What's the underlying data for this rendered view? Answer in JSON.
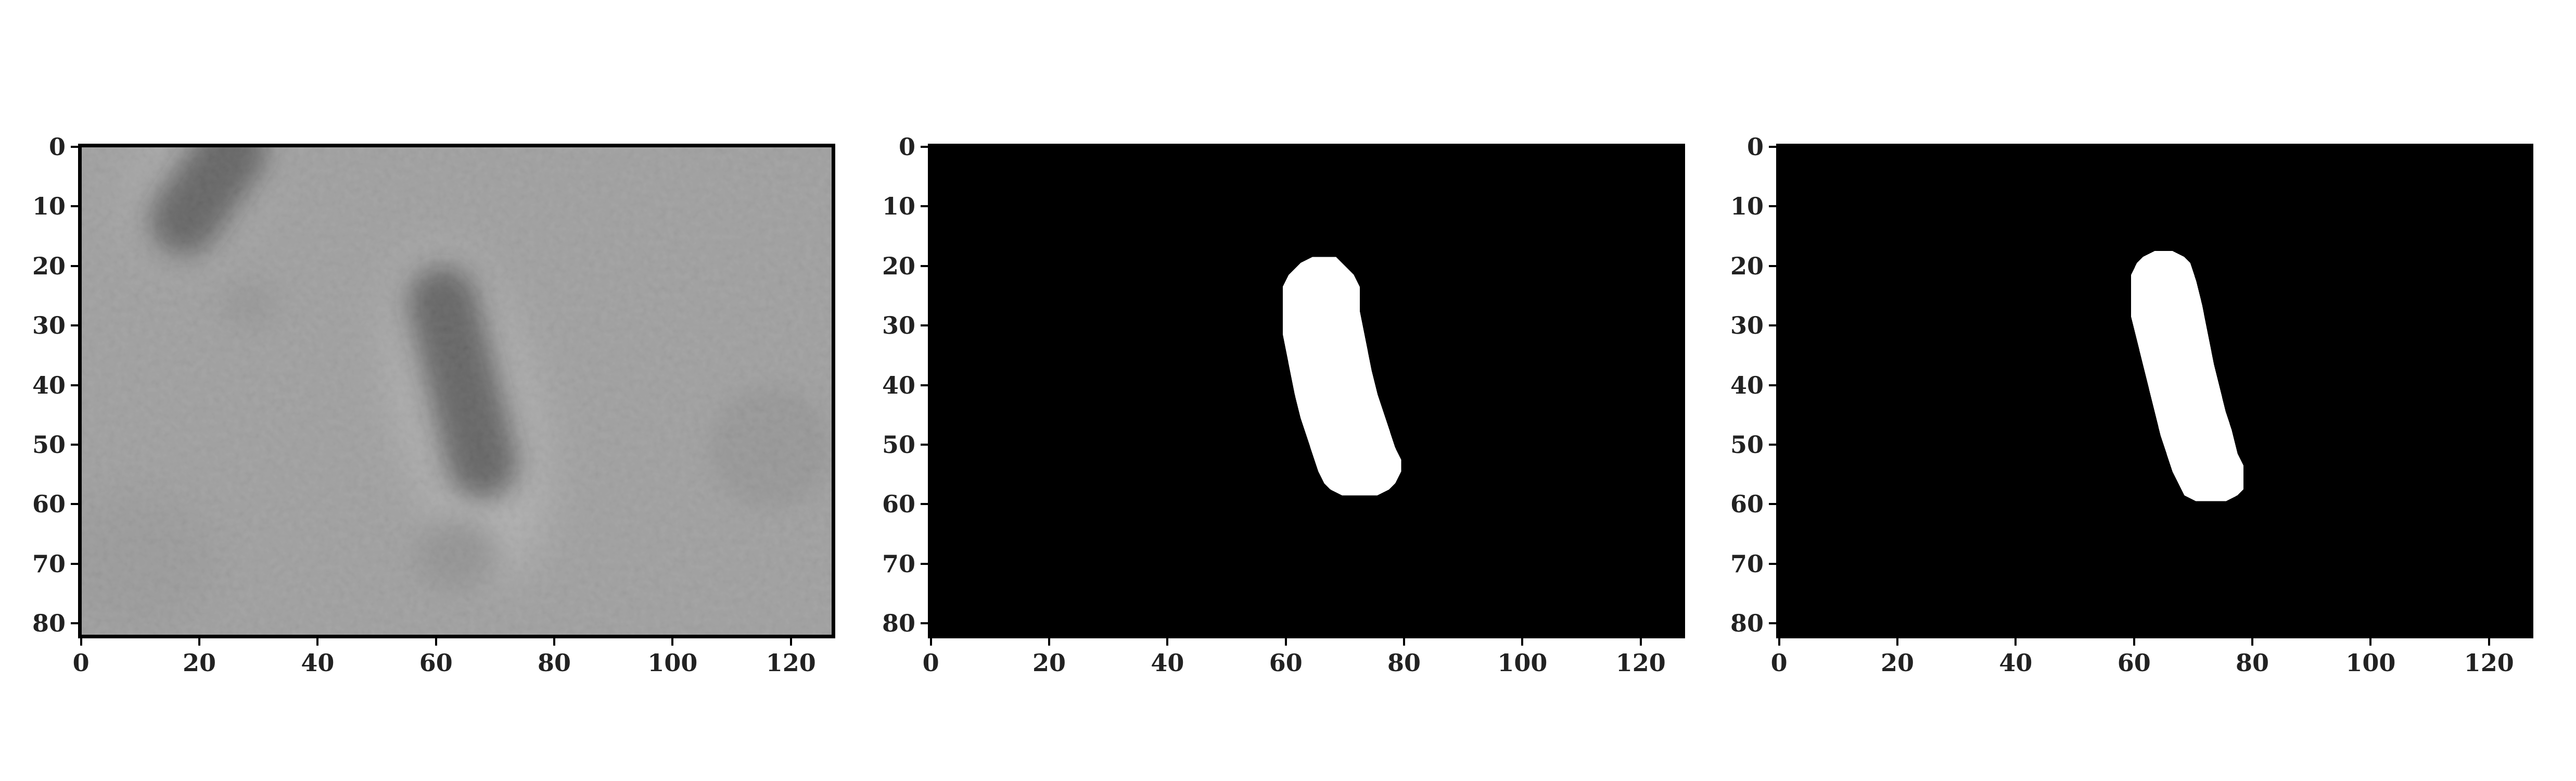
{
  "panels": [
    {
      "name": "raw-microscopy",
      "kind": "grayscale",
      "x_ticks": [
        "0",
        "20",
        "40",
        "60",
        "80",
        "100",
        "120"
      ],
      "y_ticks": [
        "0",
        "10",
        "20",
        "30",
        "40",
        "50",
        "60",
        "70",
        "80"
      ],
      "image_desc_color": "#9e9e9e"
    },
    {
      "name": "mask-a",
      "kind": "mask",
      "x_ticks": [
        "0",
        "20",
        "40",
        "60",
        "80",
        "100",
        "120"
      ],
      "y_ticks": [
        "0",
        "10",
        "20",
        "30",
        "40",
        "50",
        "60",
        "70",
        "80"
      ]
    },
    {
      "name": "mask-b",
      "kind": "mask",
      "x_ticks": [
        "0",
        "20",
        "40",
        "60",
        "80",
        "100",
        "120"
      ],
      "y_ticks": [
        "0",
        "10",
        "20",
        "30",
        "40",
        "50",
        "60",
        "70",
        "80"
      ]
    }
  ],
  "colors": {
    "mask_background": "#000000",
    "mask_foreground": "#ffffff",
    "tick_text": "#222222"
  }
}
